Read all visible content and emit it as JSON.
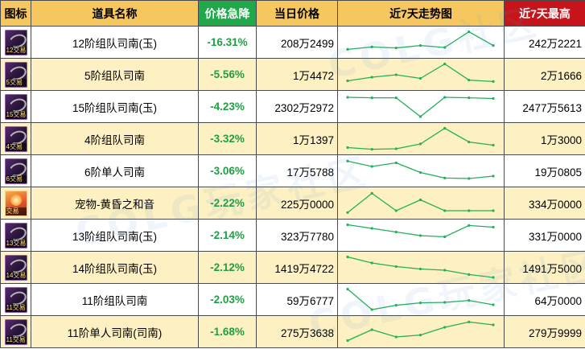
{
  "columns": {
    "icon": "图标",
    "name": "道具名称",
    "change": "价格急降",
    "price": "当日价格",
    "trend": "近7天走势图",
    "max": "近7天最高"
  },
  "colors": {
    "header_bg": "#f7c75f",
    "change_header_bg": "#20a84a",
    "max_header_bg": "#c7141a",
    "row_alt_bg": "#fdf0c2",
    "change_text": "#1f9e45",
    "trend_line": "#22b05a"
  },
  "rows": [
    {
      "icon": "gear-icon",
      "icon_tag": "12交易",
      "name": "12阶组队司南(玉)",
      "change": "-16.31%",
      "price": "208万2499",
      "max": "242万2221",
      "trend": [
        0.78,
        0.68,
        0.72,
        0.62,
        0.7,
        0.05,
        0.62
      ]
    },
    {
      "icon": "gear-icon",
      "icon_tag": "5交易",
      "name": "5阶组队司南",
      "change": "-5.56%",
      "price": "1万4472",
      "max": "2万1666",
      "trend": [
        0.75,
        0.6,
        0.5,
        0.65,
        0.05,
        0.72,
        0.78
      ]
    },
    {
      "icon": "gear-icon",
      "icon_tag": "15交易",
      "name": "15阶组队司南(玉)",
      "change": "-4.23%",
      "price": "2302万2972",
      "max": "2477万5613",
      "trend": [
        0.1,
        0.12,
        0.12,
        0.9,
        0.1,
        0.12,
        0.15
      ]
    },
    {
      "icon": "gear-icon",
      "icon_tag": "4交易",
      "name": "4阶组队司南",
      "change": "-3.32%",
      "price": "1万1397",
      "max": "1万3000",
      "trend": [
        0.85,
        0.92,
        0.9,
        0.7,
        0.05,
        0.62,
        0.75
      ]
    },
    {
      "icon": "gear-icon",
      "icon_tag": "6交易",
      "name": "6阶单人司南",
      "change": "-3.06%",
      "price": "17万5788",
      "max": "19万0805",
      "trend": [
        0.08,
        0.3,
        0.15,
        0.55,
        0.78,
        0.8,
        0.7
      ]
    },
    {
      "icon": "pet-icon",
      "icon_tag": "交易",
      "name": "宠物-黄昏之和音",
      "change": "-2.22%",
      "price": "225万0000",
      "max": "334万0000",
      "trend": [
        0.88,
        0.08,
        0.8,
        0.35,
        0.8,
        0.8,
        0.8
      ]
    },
    {
      "icon": "gear-icon",
      "icon_tag": "13交易",
      "name": "13阶组队司南(玉)",
      "change": "-2.14%",
      "price": "323万7780",
      "max": "331万0000",
      "trend": [
        0.05,
        0.2,
        0.35,
        0.5,
        0.55,
        0.08,
        0.15
      ]
    },
    {
      "icon": "gear-icon",
      "icon_tag": "14交易",
      "name": "14阶组队司南(玉)",
      "change": "-2.12%",
      "price": "1419万4722",
      "max": "1491万5000",
      "trend": [
        0.05,
        0.3,
        0.45,
        0.55,
        0.6,
        0.78,
        0.9
      ]
    },
    {
      "icon": "gear-icon",
      "icon_tag": "11交易",
      "name": "11阶组队司南",
      "change": "-2.03%",
      "price": "59万6777",
      "max": "64万0000",
      "trend": [
        0.05,
        0.9,
        0.72,
        0.62,
        0.6,
        0.52,
        0.7
      ]
    },
    {
      "icon": "gear-icon",
      "icon_tag": "11交易",
      "name": "11阶单人司南(司南)",
      "change": "-1.68%",
      "price": "275万3638",
      "max": "279万9999",
      "trend": [
        0.85,
        0.4,
        0.7,
        0.62,
        0.3,
        0.08,
        0.2
      ]
    }
  ]
}
